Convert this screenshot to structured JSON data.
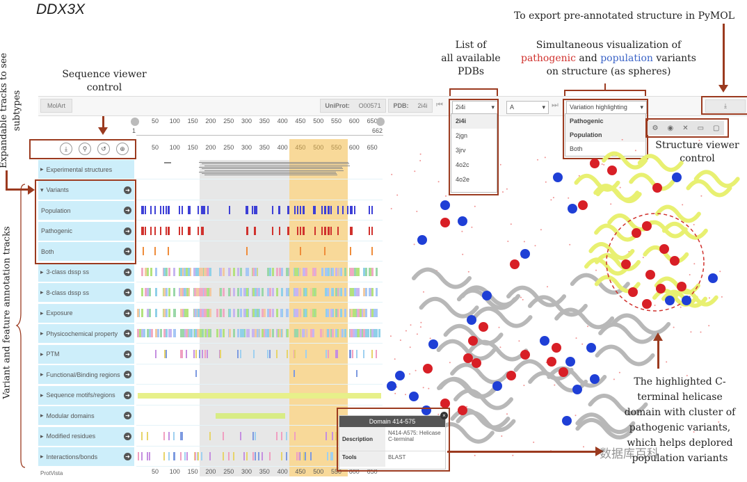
{
  "title": "DDX3X",
  "annotations": {
    "expandable_tracks": "Expandable tracks to see subtypes",
    "sequence_viewer": [
      "Sequence viewer",
      "control"
    ],
    "list_pdbs": [
      "List of",
      "all available",
      "PDBs"
    ],
    "simultaneous": [
      "Simultaneous visualization of",
      "pathogenic",
      "and",
      "population",
      "variants",
      "on structure (as spheres)"
    ],
    "export": "To export pre-annotated structure in PyMOL",
    "structure_viewer": [
      "Structure viewer",
      "control"
    ],
    "variant_feature_tracks": "Variant and feature annotation tracks",
    "highlighted": [
      "The highlighted C-",
      "terminal helicase",
      "domain with cluster of",
      "pathogenic variants,",
      "which helps deplored",
      "population variants"
    ]
  },
  "topbar": {
    "motart": "MolArt",
    "uniprot_label": "UniProt:",
    "uniprot_value": "O00571",
    "pdb_label": "PDB:",
    "pdb_value": "2i4i",
    "pdb_select": "2i4i",
    "chain_select": "A",
    "variation_select": "Variation highlighting"
  },
  "pdb_list": [
    "2i4i",
    "2jgn",
    "3jrv",
    "4o2c",
    "4o2e"
  ],
  "variation_options": [
    "Pathogenic",
    "Population",
    "Both"
  ],
  "ruler_top": {
    "ticks": [
      "50",
      "100",
      "150",
      "200",
      "250",
      "300",
      "350",
      "400",
      "450",
      "500",
      "550",
      "600",
      "650"
    ],
    "start": "1",
    "end": "662"
  },
  "ruler_main": [
    "50",
    "100",
    "150",
    "200",
    "250",
    "300",
    "350",
    "400",
    "450",
    "500",
    "550",
    "600",
    "650"
  ],
  "tracks": [
    {
      "label": "Experimental structures"
    },
    {
      "label": "Variants"
    },
    {
      "label": "Population"
    },
    {
      "label": "Pathogenic"
    },
    {
      "label": "Both"
    },
    {
      "label": "3-class dssp ss"
    },
    {
      "label": "8-class dssp ss"
    },
    {
      "label": "Exposure"
    },
    {
      "label": "Physicochemical property"
    },
    {
      "label": "PTM"
    },
    {
      "label": "Functional/Binding regions"
    },
    {
      "label": "Sequence motifs/regions"
    },
    {
      "label": "Modular domains"
    },
    {
      "label": "Modified residues"
    },
    {
      "label": "Interactions/bonds"
    }
  ],
  "footer": "ProtVista",
  "tooltip": {
    "header": "Domain 414-575",
    "rows": [
      {
        "key": "Description",
        "value": "N414-A575: Helicase C-terminal"
      },
      {
        "key": "Tools",
        "value": "BLAST"
      }
    ]
  },
  "watermark": "数据库百科",
  "colors": {
    "accent": "#9b3a1f",
    "track_bg": "#cdeefa",
    "highlight": "#f2c14e",
    "pathogenic": "#d0312d",
    "population": "#2f3fd0"
  }
}
